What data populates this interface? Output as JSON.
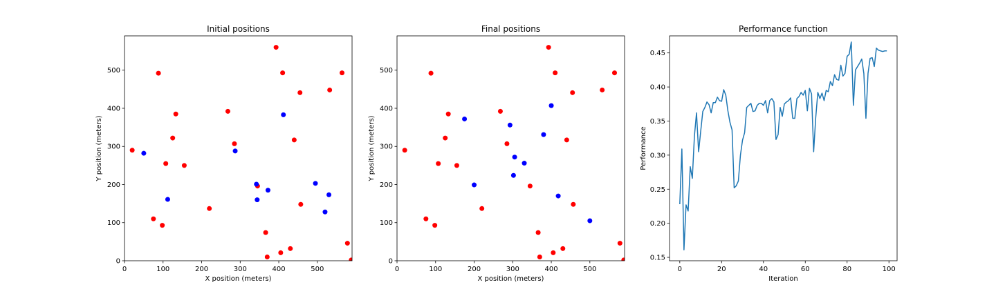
{
  "chart_data": [
    {
      "type": "scatter",
      "title": "Initial positions",
      "xlabel": "X position (meters)",
      "ylabel": "Y position (meters)",
      "xlim": [
        0,
        590
      ],
      "ylim": [
        0,
        590
      ],
      "xticks": [
        0,
        100,
        200,
        300,
        400,
        500
      ],
      "yticks": [
        0,
        100,
        200,
        300,
        400,
        500
      ],
      "grid": false,
      "series": [
        {
          "color": "#ff0000",
          "points": [
            [
              20,
              290
            ],
            [
              88,
              492
            ],
            [
              98,
              93
            ],
            [
              75,
              110
            ],
            [
              107,
              255
            ],
            [
              125,
              322
            ],
            [
              133,
              385
            ],
            [
              155,
              250
            ],
            [
              220,
              137
            ],
            [
              268,
              392
            ],
            [
              285,
              307
            ],
            [
              345,
              196
            ],
            [
              366,
              74
            ],
            [
              370,
              10
            ],
            [
              393,
              560
            ],
            [
              405,
              21
            ],
            [
              410,
              493
            ],
            [
              430,
              32
            ],
            [
              440,
              317
            ],
            [
              455,
              441
            ],
            [
              457,
              148
            ],
            [
              532,
              448
            ],
            [
              564,
              493
            ],
            [
              578,
              46
            ],
            [
              588,
              2
            ]
          ]
        },
        {
          "color": "#0000ff",
          "points": [
            [
              50,
              282
            ],
            [
              112,
              161
            ],
            [
              287,
              288
            ],
            [
              342,
              201
            ],
            [
              344,
              160
            ],
            [
              372,
              185
            ],
            [
              412,
              383
            ],
            [
              495,
              203
            ],
            [
              520,
              128
            ],
            [
              530,
              173
            ]
          ]
        }
      ]
    },
    {
      "type": "scatter",
      "title": "Final positions",
      "xlabel": "X position (meters)",
      "ylabel": "Y position (meters)",
      "xlim": [
        0,
        590
      ],
      "ylim": [
        0,
        590
      ],
      "xticks": [
        0,
        100,
        200,
        300,
        400,
        500
      ],
      "yticks": [
        0,
        100,
        200,
        300,
        400,
        500
      ],
      "grid": false,
      "series": [
        {
          "color": "#ff0000",
          "points": [
            [
              20,
              290
            ],
            [
              88,
              492
            ],
            [
              98,
              93
            ],
            [
              75,
              110
            ],
            [
              107,
              255
            ],
            [
              125,
              322
            ],
            [
              133,
              385
            ],
            [
              155,
              250
            ],
            [
              220,
              137
            ],
            [
              268,
              392
            ],
            [
              285,
              307
            ],
            [
              345,
              196
            ],
            [
              366,
              74
            ],
            [
              370,
              10
            ],
            [
              393,
              560
            ],
            [
              405,
              21
            ],
            [
              410,
              493
            ],
            [
              430,
              32
            ],
            [
              440,
              317
            ],
            [
              455,
              441
            ],
            [
              457,
              148
            ],
            [
              532,
              448
            ],
            [
              564,
              493
            ],
            [
              578,
              46
            ],
            [
              588,
              2
            ]
          ]
        },
        {
          "color": "#0000ff",
          "points": [
            [
              175,
              372
            ],
            [
              200,
              199
            ],
            [
              293,
              356
            ],
            [
              302,
              224
            ],
            [
              305,
              272
            ],
            [
              330,
              256
            ],
            [
              380,
              331
            ],
            [
              400,
              407
            ],
            [
              418,
              170
            ],
            [
              500,
              105
            ]
          ]
        }
      ]
    },
    {
      "type": "line",
      "title": "Performance function",
      "xlabel": "Iteration",
      "ylabel": "Performance",
      "xlim": [
        -4.9,
        103.9
      ],
      "ylim": [
        0.145,
        0.475
      ],
      "xticks": [
        0,
        20,
        40,
        60,
        80,
        100
      ],
      "yticks": [
        0.15,
        0.2,
        0.25,
        0.3,
        0.35,
        0.4,
        0.45
      ],
      "ytick_labels": [
        "0.15",
        "0.20",
        "0.25",
        "0.30",
        "0.35",
        "0.40",
        "0.45"
      ],
      "grid": false,
      "series": [
        {
          "color": "#1f77b4",
          "x": [
            0,
            1,
            2,
            3,
            4,
            5,
            6,
            7,
            8,
            9,
            10,
            11,
            12,
            13,
            14,
            15,
            16,
            17,
            18,
            19,
            20,
            21,
            22,
            23,
            24,
            25,
            26,
            27,
            28,
            29,
            30,
            31,
            32,
            33,
            34,
            35,
            36,
            37,
            38,
            39,
            40,
            41,
            42,
            43,
            44,
            45,
            46,
            47,
            48,
            49,
            50,
            51,
            52,
            53,
            54,
            55,
            56,
            57,
            58,
            59,
            60,
            61,
            62,
            63,
            64,
            65,
            66,
            67,
            68,
            69,
            70,
            71,
            72,
            73,
            74,
            75,
            76,
            77,
            78,
            79,
            80,
            81,
            82,
            83,
            84,
            85,
            86,
            87,
            88,
            89,
            90,
            91,
            92,
            93,
            94,
            95,
            96,
            97,
            98,
            99
          ],
          "y": [
            0.228,
            0.309,
            0.161,
            0.227,
            0.218,
            0.283,
            0.266,
            0.328,
            0.362,
            0.305,
            0.335,
            0.364,
            0.37,
            0.378,
            0.374,
            0.362,
            0.377,
            0.377,
            0.385,
            0.38,
            0.379,
            0.396,
            0.388,
            0.365,
            0.348,
            0.337,
            0.252,
            0.255,
            0.262,
            0.3,
            0.322,
            0.333,
            0.37,
            0.373,
            0.376,
            0.364,
            0.365,
            0.373,
            0.376,
            0.376,
            0.373,
            0.38,
            0.362,
            0.38,
            0.383,
            0.378,
            0.323,
            0.33,
            0.37,
            0.357,
            0.375,
            0.378,
            0.38,
            0.384,
            0.354,
            0.354,
            0.383,
            0.386,
            0.392,
            0.388,
            0.395,
            0.365,
            0.398,
            0.39,
            0.305,
            0.355,
            0.392,
            0.383,
            0.391,
            0.38,
            0.395,
            0.393,
            0.408,
            0.402,
            0.418,
            0.411,
            0.41,
            0.432,
            0.416,
            0.42,
            0.445,
            0.448,
            0.466,
            0.373,
            0.425,
            0.43,
            0.435,
            0.441,
            0.42,
            0.354,
            0.42,
            0.442,
            0.443,
            0.43,
            0.457,
            0.454,
            0.453,
            0.452,
            0.453,
            0.453
          ]
        }
      ]
    }
  ]
}
